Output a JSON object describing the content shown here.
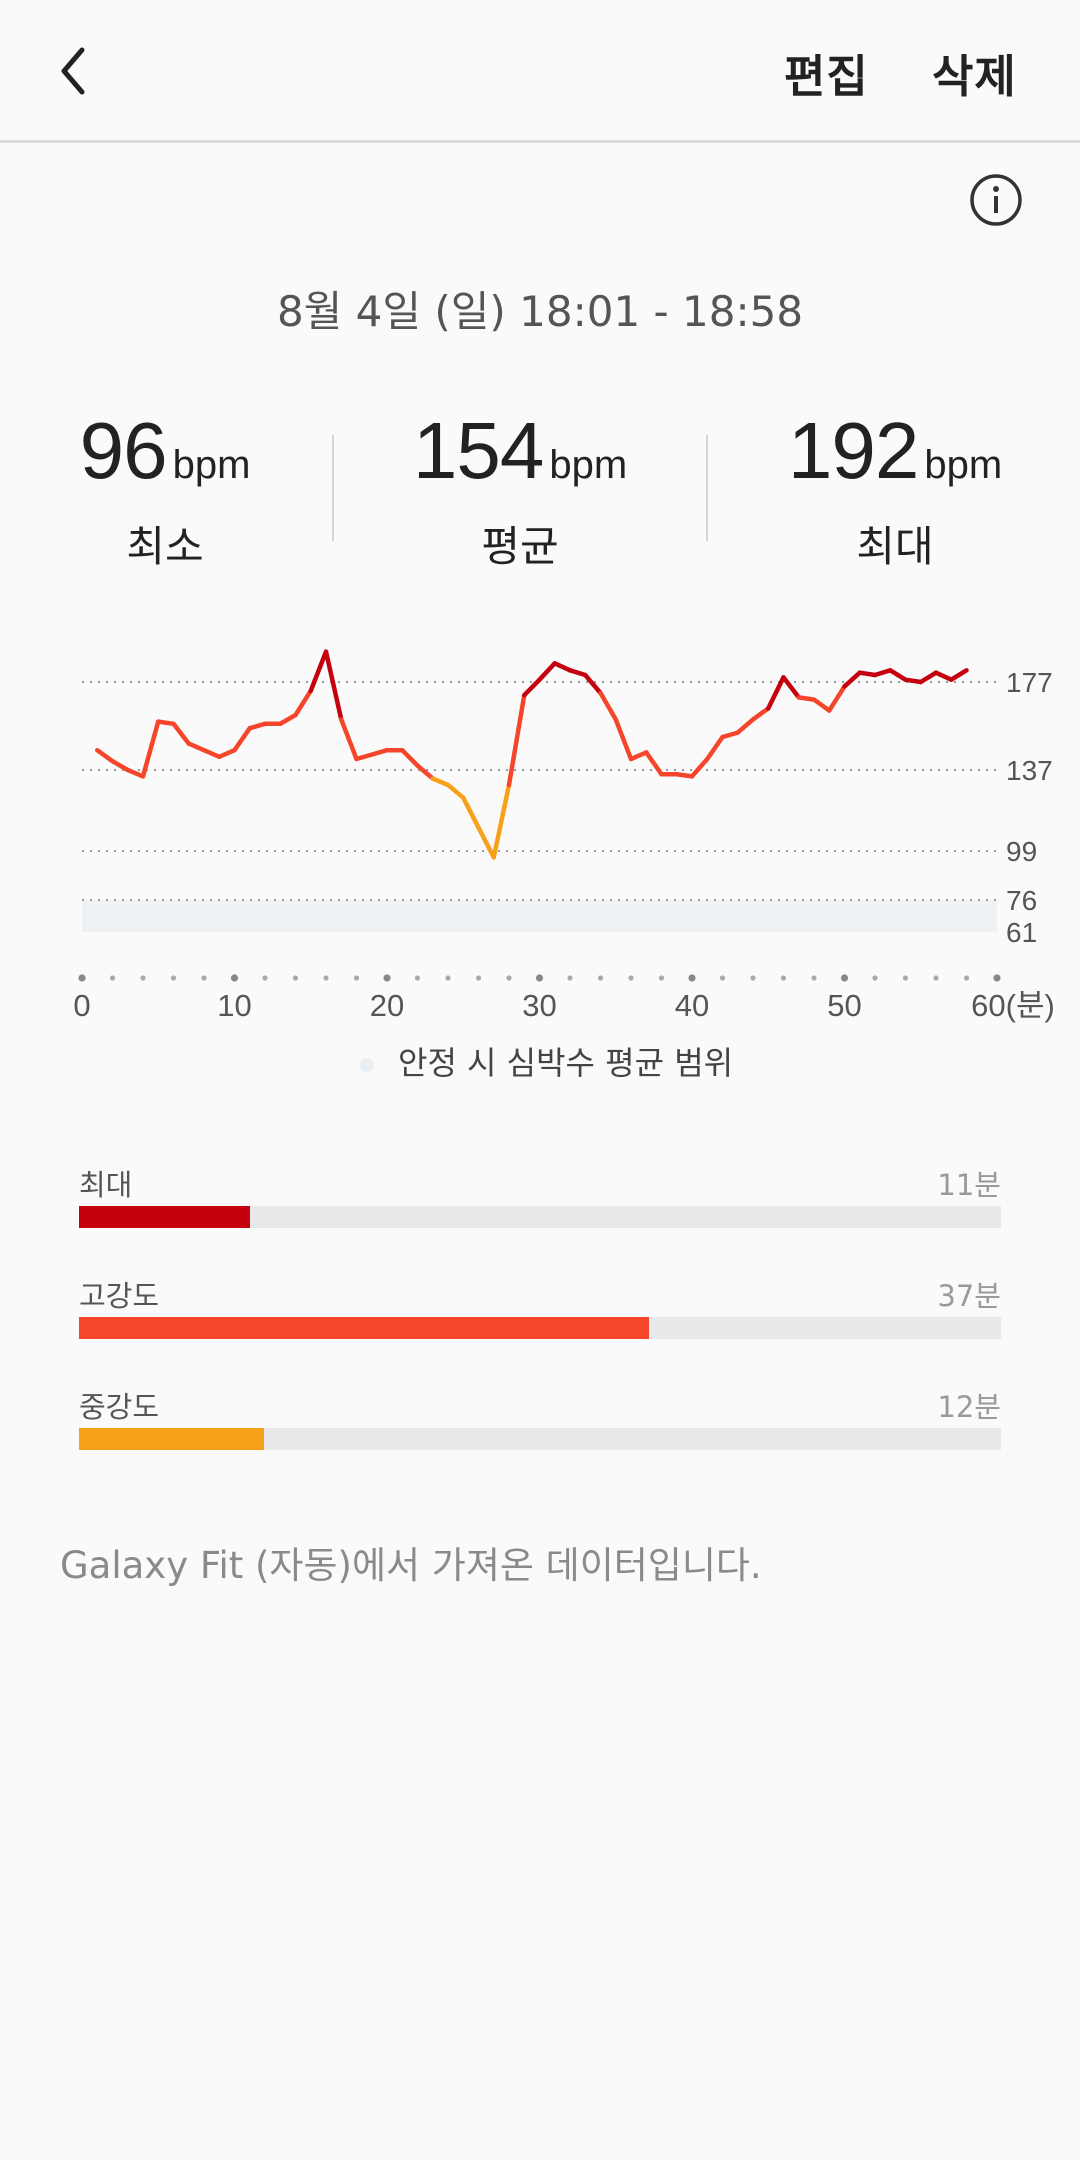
{
  "header": {
    "back_icon": "chevron-left-icon",
    "edit_label": "편집",
    "delete_label": "삭제"
  },
  "info_icon": "info-circle-icon",
  "session": {
    "datetime": "8월 4일 (일) 18:01 - 18:58"
  },
  "stats": [
    {
      "value": "96",
      "unit": "bpm",
      "label": "최소"
    },
    {
      "value": "154",
      "unit": "bpm",
      "label": "평균"
    },
    {
      "value": "192",
      "unit": "bpm",
      "label": "최대"
    }
  ],
  "chart_data": {
    "type": "line",
    "x_unit_label": "(분)",
    "x_ticks": [
      0,
      10,
      20,
      30,
      40,
      50,
      60
    ],
    "y_reference_lines": [
      177,
      137,
      99,
      76
    ],
    "y_labels": [
      "177",
      "137",
      "99",
      "76",
      "61"
    ],
    "resting_range": [
      61,
      76
    ],
    "legend": "안정 시 심박수 평균 범위",
    "zone_colors": {
      "max": "#c5000f",
      "high": "#f5462c",
      "moderate": "#f7a11a"
    },
    "x": [
      1,
      2,
      3,
      4,
      5,
      6,
      7,
      8,
      9,
      10,
      11,
      12,
      13,
      14,
      15,
      16,
      17,
      18,
      19,
      20,
      21,
      22,
      23,
      24,
      25,
      26,
      27,
      28,
      29,
      30,
      31,
      32,
      33,
      34,
      35,
      36,
      37,
      38,
      39,
      40,
      41,
      42,
      43,
      44,
      45,
      46,
      47,
      48,
      49,
      50,
      51,
      52,
      53,
      54,
      55,
      56,
      57,
      58
    ],
    "y": [
      146,
      141,
      137,
      134,
      159,
      158,
      149,
      146,
      143,
      146,
      156,
      158,
      158,
      162,
      173,
      190,
      160,
      142,
      144,
      146,
      146,
      139,
      133,
      130,
      124,
      110,
      96,
      130,
      171,
      178,
      185,
      182,
      180,
      172,
      160,
      142,
      145,
      135,
      135,
      134,
      142,
      152,
      154,
      160,
      165,
      179,
      170,
      169,
      164,
      175,
      181,
      180,
      182,
      178,
      177,
      181,
      178,
      182
    ]
  },
  "zones": [
    {
      "label": "최대",
      "value": "11분",
      "fraction": 0.185,
      "color": "#c5000f"
    },
    {
      "label": "고강도",
      "value": "37분",
      "fraction": 0.618,
      "color": "#f5462c"
    },
    {
      "label": "중강도",
      "value": "12분",
      "fraction": 0.201,
      "color": "#f7a11a"
    }
  ],
  "source_text": "Galaxy Fit (자동)에서 가져온 데이터입니다."
}
